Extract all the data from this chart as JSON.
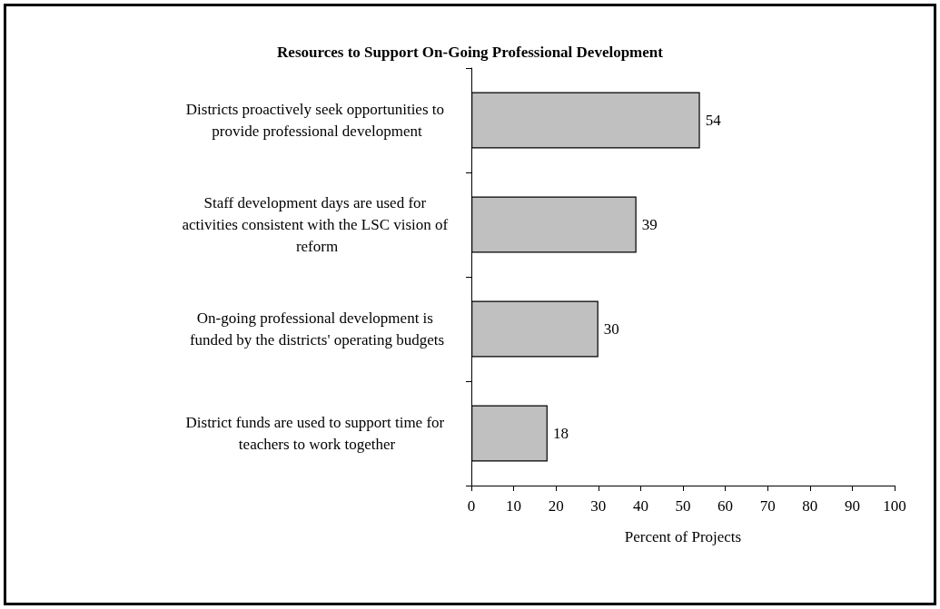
{
  "chart_data": {
    "type": "bar",
    "orientation": "horizontal",
    "title": "Resources to Support On-Going Professional Development",
    "categories": [
      "Districts proactively seek opportunities to provide professional development",
      "Staff development days are used for activities consistent with the LSC vision of reform",
      "On-going professional development is funded by the districts' operating budgets",
      "District funds are used to support time for teachers to work together"
    ],
    "values": [
      54,
      39,
      30,
      18
    ],
    "color": "#c0c0c0",
    "xlim": [
      0,
      100
    ],
    "xticks": [
      0,
      10,
      20,
      30,
      40,
      50,
      60,
      70,
      80,
      90,
      100
    ],
    "xlabel": "Percent of Projects",
    "data_labels": true,
    "grid": false
  }
}
